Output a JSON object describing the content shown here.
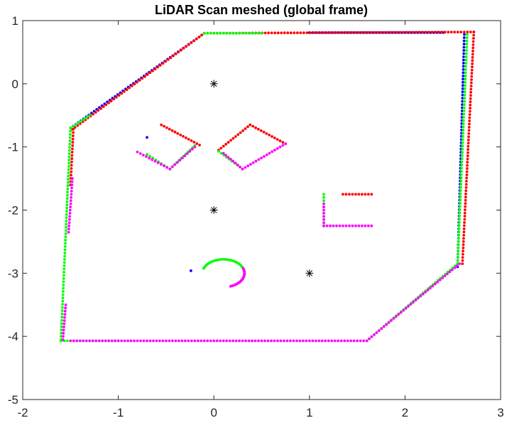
{
  "chart_data": {
    "type": "scatter",
    "title": "LiDAR Scan meshed (global frame)",
    "xlabel": "",
    "ylabel": "",
    "xlim": [
      -2,
      3
    ],
    "ylim": [
      -5,
      1
    ],
    "xticks": [
      -2,
      -1,
      0,
      1,
      2,
      3
    ],
    "yticks": [
      1,
      0,
      -1,
      -2,
      -3,
      -4,
      -5
    ],
    "grid": false,
    "legend": "none",
    "colors": {
      "blue": "#0000ff",
      "red": "#ff0000",
      "green": "#00ff00",
      "magenta": "#ff00ff",
      "markers": "#000000"
    },
    "series": [
      {
        "color": "blue",
        "segments": [
          [
            [
              -1.5,
              -0.7
            ],
            [
              -0.1,
              0.8
            ]
          ],
          [
            [
              2.62,
              0.78
            ],
            [
              2.55,
              -2.9
            ]
          ],
          [
            [
              1.0,
              0.81
            ],
            [
              2.4,
              0.81
            ]
          ]
        ],
        "points": [
          [
            -0.7,
            -0.85
          ],
          [
            -0.24,
            -2.96
          ]
        ]
      },
      {
        "color": "red",
        "segments": [
          [
            [
              -1.48,
              -0.72
            ],
            [
              -0.1,
              0.8
            ]
          ],
          [
            [
              -0.1,
              0.8
            ],
            [
              2.72,
              0.82
            ]
          ],
          [
            [
              2.72,
              0.82
            ],
            [
              2.6,
              -2.85
            ]
          ],
          [
            [
              -1.47,
              -0.72
            ],
            [
              -1.5,
              -1.6
            ]
          ],
          [
            [
              -0.55,
              -0.65
            ],
            [
              -0.15,
              -0.97
            ]
          ],
          [
            [
              0.05,
              -1.05
            ],
            [
              0.38,
              -0.65
            ]
          ],
          [
            [
              0.38,
              -0.65
            ],
            [
              0.75,
              -0.95
            ]
          ],
          [
            [
              1.35,
              -1.75
            ],
            [
              1.65,
              -1.75
            ]
          ]
        ],
        "points": []
      },
      {
        "color": "green",
        "segments": [
          [
            [
              -1.6,
              -4.05
            ],
            [
              -1.5,
              -0.7
            ]
          ],
          [
            [
              -1.5,
              -0.7
            ],
            [
              -1.3,
              -0.5
            ]
          ],
          [
            [
              -0.1,
              0.8
            ],
            [
              0.5,
              0.8
            ]
          ],
          [
            [
              2.65,
              0.78
            ],
            [
              2.55,
              -2.85
            ]
          ],
          [
            [
              2.55,
              -2.85
            ],
            [
              1.6,
              -4.07
            ]
          ],
          [
            [
              -1.6,
              -4.07
            ],
            [
              -1.0,
              -4.07
            ]
          ],
          [
            [
              -0.2,
              -0.98
            ],
            [
              -0.46,
              -1.35
            ]
          ],
          [
            [
              -0.7,
              -1.12
            ],
            [
              -0.46,
              -1.35
            ]
          ],
          [
            [
              0.05,
              -1.07
            ],
            [
              0.3,
              -1.35
            ]
          ],
          [
            [
              1.15,
              -1.75
            ],
            [
              1.15,
              -2.25
            ]
          ]
        ],
        "arc": {
          "cx": 0.1,
          "cy": -3.0,
          "r": 0.22,
          "start_deg": 160,
          "end_deg": 20
        },
        "points": []
      },
      {
        "color": "magenta",
        "segments": [
          [
            [
              -1.55,
              -3.5
            ],
            [
              -1.58,
              -4.05
            ]
          ],
          [
            [
              -1.5,
              -4.07
            ],
            [
              1.6,
              -4.07
            ]
          ],
          [
            [
              1.6,
              -4.07
            ],
            [
              2.57,
              -2.85
            ]
          ],
          [
            [
              -1.48,
              -1.5
            ],
            [
              -1.52,
              -2.35
            ]
          ],
          [
            [
              -0.8,
              -1.08
            ],
            [
              -0.46,
              -1.35
            ]
          ],
          [
            [
              -0.46,
              -1.35
            ],
            [
              -0.2,
              -1.0
            ]
          ],
          [
            [
              0.3,
              -1.35
            ],
            [
              0.1,
              -1.1
            ]
          ],
          [
            [
              0.3,
              -1.35
            ],
            [
              0.75,
              -0.95
            ]
          ],
          [
            [
              1.15,
              -2.25
            ],
            [
              1.65,
              -2.25
            ]
          ],
          [
            [
              1.15,
              -1.9
            ],
            [
              1.15,
              -2.25
            ]
          ]
        ],
        "arc": {
          "cx": 0.1,
          "cy": -3.0,
          "r": 0.22,
          "start_deg": 20,
          "end_deg": -70
        },
        "points": []
      }
    ],
    "markers": [
      [
        0,
        0
      ],
      [
        0,
        -2
      ],
      [
        1,
        -3
      ]
    ]
  }
}
